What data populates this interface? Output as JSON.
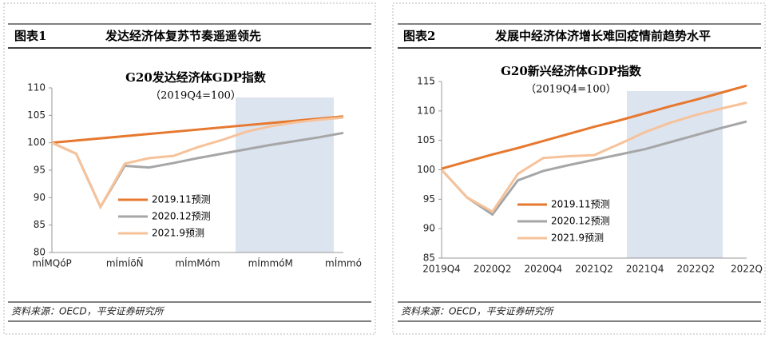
{
  "panels": [
    {
      "label": "图表1",
      "title": "发达经济体复苏节奏遥遥领先",
      "source": "资料来源：OECD，平安证券研究所"
    },
    {
      "label": "图表2",
      "title": "发展中经济体济增长难回疫情前趋势水平",
      "source": "资料来源：OECD，平安证券研究所"
    }
  ],
  "chart_data": [
    {
      "type": "line",
      "title": "G20发达经济体GDP指数",
      "subtitle": "（2019Q4=100）",
      "categories": [
        "mÍMQóP",
        null,
        null,
        "mÍmÍõÑ",
        null,
        null,
        "mÍmMóm",
        null,
        null,
        "mÍmmóM",
        null,
        null,
        "mÍmmó"
      ],
      "ylim": [
        80,
        110
      ],
      "yticks": [
        80,
        85,
        90,
        95,
        100,
        105,
        110
      ],
      "series": [
        {
          "name": "2019.11预测",
          "color": "#E6782F",
          "values": [
            100,
            100.4,
            100.8,
            101.2,
            101.6,
            102,
            102.4,
            102.8,
            103.2,
            103.6,
            104,
            104.4,
            104.8
          ]
        },
        {
          "name": "2020.12预测",
          "color": "#A6A6A6",
          "values": [
            100,
            98,
            88.3,
            95.8,
            95.5,
            96.3,
            97.2,
            98,
            98.8,
            99.6,
            100.3,
            101,
            101.8
          ]
        },
        {
          "name": "2021.9预测",
          "color": "#F6C29A",
          "values": [
            100,
            98,
            88.3,
            96.2,
            97.2,
            97.6,
            99.2,
            100.5,
            102,
            103,
            103.7,
            104.2,
            104.6
          ]
        }
      ]
    },
    {
      "type": "line",
      "title": "G20新兴经济体GDP指数",
      "subtitle": "（2019Q4=100）",
      "categories": [
        "2019Q4",
        null,
        "2020Q2",
        null,
        "2020Q4",
        null,
        "2021Q2",
        null,
        "2021Q4",
        null,
        "2022Q2",
        null,
        "2022Q"
      ],
      "ylim": [
        85,
        115
      ],
      "yticks": [
        85,
        90,
        95,
        100,
        105,
        110,
        115
      ],
      "series": [
        {
          "name": "2019.11预测",
          "color": "#E6782F",
          "values": [
            100.2,
            101.4,
            102.6,
            103.7,
            104.9,
            106.1,
            107.3,
            108.4,
            109.6,
            110.8,
            111.9,
            113.1,
            114.3
          ]
        },
        {
          "name": "2020.12预测",
          "color": "#A6A6A6",
          "values": [
            100,
            95.3,
            92.4,
            98.2,
            99.8,
            100.8,
            101.7,
            102.6,
            103.5,
            104.7,
            105.9,
            107.1,
            108.2
          ]
        },
        {
          "name": "2021.9预测",
          "color": "#F6C29A",
          "values": [
            100,
            95.3,
            92.9,
            99.3,
            102,
            102.3,
            102.5,
            104.4,
            106.4,
            108,
            109.3,
            110.4,
            111.4
          ]
        }
      ]
    }
  ]
}
